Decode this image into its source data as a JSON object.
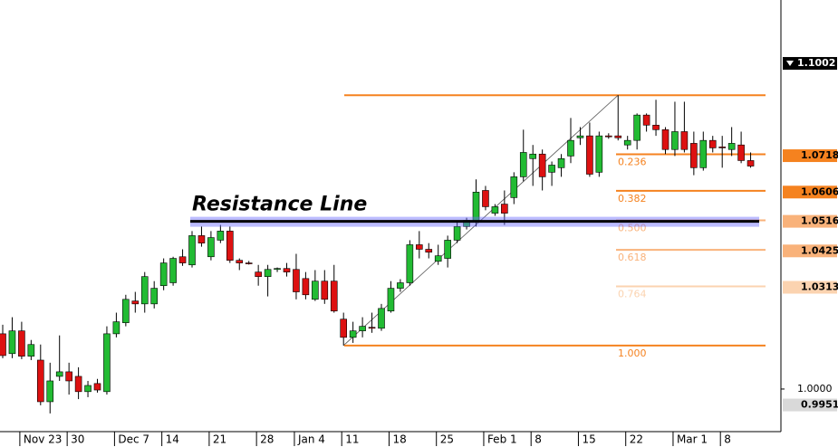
{
  "chart_data": {
    "type": "candlestick",
    "categories": [
      null,
      null,
      "Nov 23",
      null,
      null,
      null,
      null,
      "30",
      null,
      null,
      null,
      null,
      "Dec 7",
      null,
      null,
      null,
      null,
      "14",
      null,
      null,
      null,
      null,
      "21",
      null,
      null,
      null,
      null,
      "28",
      null,
      null,
      null,
      "Jan 4",
      null,
      null,
      null,
      null,
      "11",
      null,
      null,
      null,
      null,
      "18",
      null,
      null,
      null,
      null,
      "25",
      null,
      null,
      null,
      null,
      "Feb 1",
      null,
      null,
      null,
      null,
      "8",
      null,
      null,
      null,
      null,
      "15",
      null,
      null,
      null,
      null,
      "22",
      null,
      null,
      null,
      null,
      "Mar 1",
      null,
      null,
      null,
      null,
      "8",
      null,
      null,
      null
    ],
    "open": [
      1.017,
      1.0109,
      1.0179,
      1.0101,
      1.0089,
      0.9961,
      1.0039,
      1.0053,
      1.0039,
      0.9992,
      1.0017,
      0.9992,
      1.017,
      1.0204,
      1.0271,
      1.0262,
      1.0262,
      1.0318,
      1.0327,
      1.0407,
      1.0382,
      1.0472,
      1.0407,
      1.0458,
      1.0486,
      1.0396,
      1.0388,
      1.036,
      1.0346,
      1.0368,
      1.0371,
      1.0368,
      1.034,
      1.0276,
      1.0332,
      1.0332,
      1.0215,
      1.0159,
      1.0179,
      1.019,
      1.0187,
      1.024,
      1.031,
      1.0327,
      1.0444,
      1.043,
      1.0393,
      1.0402,
      1.0458,
      1.05,
      1.0513,
      1.0611,
      1.0541,
      1.0569,
      1.0589,
      1.0653,
      1.0709,
      1.0723,
      1.0667,
      1.0681,
      1.0717,
      1.0773,
      1.0779,
      1.0667,
      1.0779,
      1.0779,
      1.0751,
      1.0765,
      1.0843,
      1.0812,
      1.0798,
      1.0737,
      1.0792,
      1.0756,
      1.0681,
      1.0765,
      1.0745,
      1.0737,
      1.0751,
      1.0703
    ],
    "high": [
      1.0198,
      1.0221,
      1.0207,
      1.0151,
      1.0137,
      1.0081,
      1.0165,
      1.0081,
      1.0067,
      1.0025,
      1.0031,
      1.0193,
      1.0235,
      1.029,
      1.0299,
      1.036,
      1.0332,
      1.0402,
      1.0407,
      1.043,
      1.0486,
      1.05,
      1.0486,
      1.0505,
      1.05,
      1.0402,
      1.0394,
      1.0382,
      1.0382,
      1.0374,
      1.0388,
      1.0416,
      1.036,
      1.0366,
      1.0366,
      1.0382,
      1.0235,
      1.0207,
      1.0221,
      1.0235,
      1.0262,
      1.0332,
      1.0338,
      1.0458,
      1.0486,
      1.0449,
      1.0444,
      1.0472,
      1.0513,
      1.0527,
      1.0645,
      1.0625,
      1.0569,
      1.0611,
      1.0667,
      1.0798,
      1.0751,
      1.0737,
      1.07,
      1.0723,
      1.0834,
      1.0806,
      1.082,
      1.0792,
      1.0787,
      1.0904,
      1.0779,
      1.0848,
      1.0848,
      1.089,
      1.0806,
      1.0884,
      1.0884,
      1.0792,
      1.0792,
      1.0779,
      1.0779,
      1.0806,
      1.0792,
      1.0728
    ],
    "low": [
      1.0095,
      1.0095,
      1.0092,
      1.0089,
      0.995,
      0.9925,
      1.0025,
      0.9983,
      0.9969,
      0.9975,
      0.9989,
      0.9983,
      1.0159,
      1.0193,
      1.0235,
      1.0235,
      1.0248,
      1.0304,
      1.0318,
      1.0379,
      1.0374,
      1.0438,
      1.0396,
      1.0449,
      1.0388,
      1.0366,
      1.0383,
      1.0318,
      1.0285,
      1.036,
      1.0346,
      1.0276,
      1.0276,
      1.0271,
      1.0262,
      1.0235,
      1.0134,
      1.0142,
      1.0159,
      1.0173,
      1.0179,
      1.0235,
      1.0299,
      1.0318,
      1.0402,
      1.0402,
      1.0382,
      1.0374,
      1.0449,
      1.0491,
      1.05,
      1.055,
      1.0533,
      1.0505,
      1.0569,
      1.0639,
      1.0625,
      1.0611,
      1.0625,
      1.0653,
      1.0695,
      1.0751,
      1.0653,
      1.0653,
      1.077,
      1.0765,
      1.0737,
      1.0737,
      1.0792,
      1.0779,
      1.0723,
      1.0717,
      1.0728,
      1.0658,
      1.0672,
      1.0728,
      1.0681,
      1.0717,
      1.0695,
      1.0681
    ],
    "close": [
      1.0103,
      1.0179,
      1.0101,
      1.0137,
      0.9961,
      1.0025,
      1.0053,
      1.0025,
      0.9992,
      1.0011,
      0.9997,
      1.017,
      1.0207,
      1.0276,
      1.0262,
      1.0346,
      1.031,
      1.0388,
      1.0402,
      1.0388,
      1.0472,
      1.0449,
      1.0466,
      1.0486,
      1.0396,
      1.0388,
      1.0387,
      1.0346,
      1.0368,
      1.0371,
      1.036,
      1.0299,
      1.029,
      1.0332,
      1.0276,
      1.024,
      1.0159,
      1.0179,
      1.0193,
      1.0187,
      1.0248,
      1.031,
      1.0327,
      1.0444,
      1.043,
      1.0421,
      1.041,
      1.0458,
      1.05,
      1.0519,
      1.0606,
      1.0561,
      1.0561,
      1.0541,
      1.0653,
      1.0728,
      1.0723,
      1.0653,
      1.0689,
      1.0709,
      1.0765,
      1.0779,
      1.0661,
      1.0779,
      1.0776,
      1.0773,
      1.0765,
      1.0843,
      1.0812,
      1.0798,
      1.0737,
      1.0792,
      1.0737,
      1.0681,
      1.0765,
      1.0742,
      1.0742,
      1.0756,
      1.0703,
      1.0686
    ],
    "up_color": "#22bb33",
    "down_color": "#dd1111",
    "ylim": [
      0.9869,
      1.1197
    ],
    "yticks": [
      {
        "value": 1.0,
        "label": "1.0000"
      }
    ],
    "price_markers": [
      {
        "value": 1.1002,
        "label": "1.1002",
        "color": "#000000"
      },
      {
        "value": 0.9951,
        "label": "0.9951",
        "color": "#d9d9d9"
      }
    ],
    "fib": {
      "high": 1.0904,
      "low": 1.0134,
      "color": "#f5821f",
      "levels": [
        {
          "ratio": 0.236,
          "price": 1.0718,
          "color": "#f5821f"
        },
        {
          "ratio": 0.382,
          "price": 1.0606,
          "color": "#f5821f"
        },
        {
          "ratio": {
            "value": 0.5,
            "label": "0.500"
          },
          "price": 1.0516,
          "color": "#f9b27a"
        },
        {
          "ratio": 0.618,
          "price": 1.0425,
          "color": "#f9b27a"
        },
        {
          "ratio": 0.764,
          "price": 1.0313,
          "color": "#fbd3b0"
        },
        {
          "ratio": {
            "value": 1.0,
            "label": "1.000"
          },
          "color": "#f5821f"
        }
      ]
    },
    "resistance": {
      "label": "Resistance Line",
      "value": 1.0516,
      "color": "#000000"
    }
  }
}
